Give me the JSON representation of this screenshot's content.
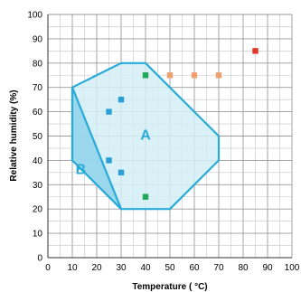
{
  "chart_data": {
    "type": "scatter",
    "title": "",
    "xlabel": "Temperature ( °C)",
    "ylabel": "Relative humidity (%)",
    "xlim": [
      0,
      100
    ],
    "ylim": [
      0,
      100
    ],
    "x_ticks": [
      0,
      10,
      20,
      30,
      40,
      50,
      60,
      70,
      80,
      90,
      100
    ],
    "y_ticks": [
      0,
      10,
      20,
      30,
      40,
      50,
      60,
      70,
      80,
      90,
      100
    ],
    "grid": true,
    "regions": [
      {
        "label": "A",
        "polygon": [
          [
            10,
            70
          ],
          [
            30,
            80
          ],
          [
            40,
            80
          ],
          [
            70,
            50
          ],
          [
            70,
            40
          ],
          [
            50,
            20
          ],
          [
            30,
            20
          ],
          [
            10,
            40
          ]
        ],
        "fill": "#d2eef6",
        "stroke": "#29abd8"
      },
      {
        "label": "B",
        "polygon": [
          [
            10,
            70
          ],
          [
            30,
            20
          ],
          [
            10,
            40
          ]
        ],
        "fill": "#8fd3ec",
        "stroke": "#29abd8"
      }
    ],
    "series": [
      {
        "color": "#2a9fd6",
        "points": [
          [
            25,
            60
          ],
          [
            30,
            65
          ],
          [
            25,
            40
          ],
          [
            30,
            35
          ]
        ]
      },
      {
        "color": "#22a85a",
        "points": [
          [
            40,
            75
          ],
          [
            40,
            25
          ]
        ]
      },
      {
        "color": "#f0a070",
        "points": [
          [
            50,
            75
          ],
          [
            60,
            75
          ],
          [
            70,
            75
          ]
        ]
      },
      {
        "color": "#e0392b",
        "points": [
          [
            85,
            85
          ]
        ]
      }
    ]
  }
}
